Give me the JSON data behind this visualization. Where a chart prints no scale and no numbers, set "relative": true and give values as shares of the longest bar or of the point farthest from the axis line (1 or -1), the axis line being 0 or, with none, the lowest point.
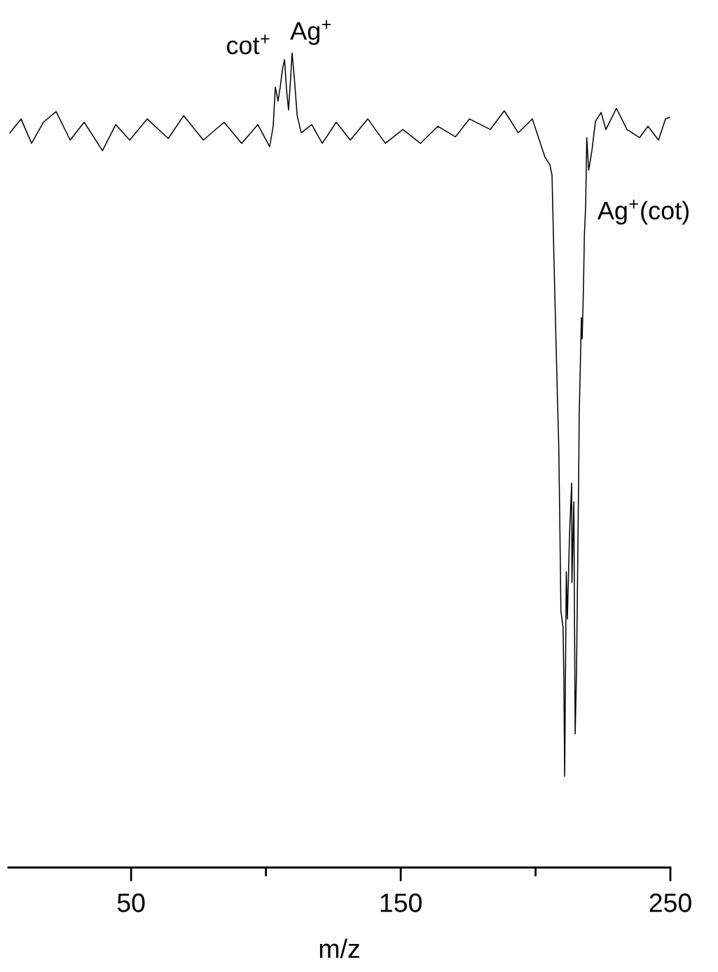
{
  "chart_data": {
    "type": "line",
    "relative": true,
    "xlabel": "m/z",
    "color": "#000000",
    "xlim": [
      4.5,
      250
    ],
    "xticks": [
      50,
      {
        "value": 100,
        "label": null
      },
      150,
      {
        "value": 200,
        "label": null
      },
      250
    ],
    "tick_labels": "x",
    "grid": false,
    "marker": "none",
    "line_style": "solid",
    "x": [
      5.1,
      9.2,
      13.1,
      17.5,
      22.2,
      27.4,
      32.6,
      39.4,
      44.3,
      49.5,
      56.0,
      63.8,
      69.5,
      76.8,
      84.5,
      91.0,
      97.0,
      101.4,
      102.7,
      103.5,
      104.5,
      105.3,
      106.1,
      106.9,
      107.7,
      108.4,
      109.2,
      109.7,
      110.5,
      111.6,
      113.1,
      117.0,
      120.9,
      126.1,
      131.3,
      137.8,
      144.3,
      150.8,
      157.3,
      163.8,
      170.3,
      175.5,
      183.2,
      188.4,
      193.6,
      198.8,
      201.4,
      203.5,
      205.3,
      206.1,
      207.0,
      208.2,
      208.6,
      209.2,
      209.4,
      210.2,
      210.5,
      210.8,
      211.4,
      211.8,
      212.6,
      213.4,
      213.5,
      214.2,
      214.7,
      215.2,
      216.0,
      216.2,
      217.0,
      217.3,
      217.8,
      218.1,
      218.6,
      219.0,
      219.7,
      220.9,
      222.2,
      224.3,
      226.1,
      230.0,
      233.9,
      238.6,
      241.7,
      245.6,
      248.2,
      249.7
    ],
    "values": [
      0.902,
      0.919,
      0.889,
      0.915,
      0.928,
      0.893,
      0.915,
      0.88,
      0.912,
      0.893,
      0.919,
      0.895,
      0.923,
      0.893,
      0.915,
      0.889,
      0.912,
      0.885,
      0.91,
      0.958,
      0.941,
      0.958,
      0.979,
      0.992,
      0.953,
      0.93,
      0.971,
      1.0,
      0.971,
      0.923,
      0.902,
      0.912,
      0.889,
      0.915,
      0.893,
      0.919,
      0.889,
      0.906,
      0.889,
      0.91,
      0.897,
      0.919,
      0.906,
      0.929,
      0.902,
      0.919,
      0.893,
      0.872,
      0.863,
      0.85,
      0.723,
      0.566,
      0.519,
      0.373,
      0.315,
      0.295,
      0.232,
      0.112,
      0.363,
      0.305,
      0.409,
      0.472,
      0.35,
      0.449,
      0.164,
      0.242,
      0.482,
      0.556,
      0.675,
      0.649,
      0.717,
      0.775,
      0.814,
      0.896,
      0.856,
      0.88,
      0.916,
      0.927,
      0.906,
      0.932,
      0.906,
      0.896,
      0.91,
      0.893,
      0.919,
      0.921
    ],
    "annotations": [
      {
        "text": "cot$^{+}$",
        "x": 106.9,
        "y": 0.992
      },
      {
        "text": "Ag$^{+}$",
        "x": 109.7,
        "y": 1.0
      },
      {
        "text": "Ag$^{+}$(cot)",
        "x": 218.6,
        "y": 0.814
      }
    ]
  }
}
